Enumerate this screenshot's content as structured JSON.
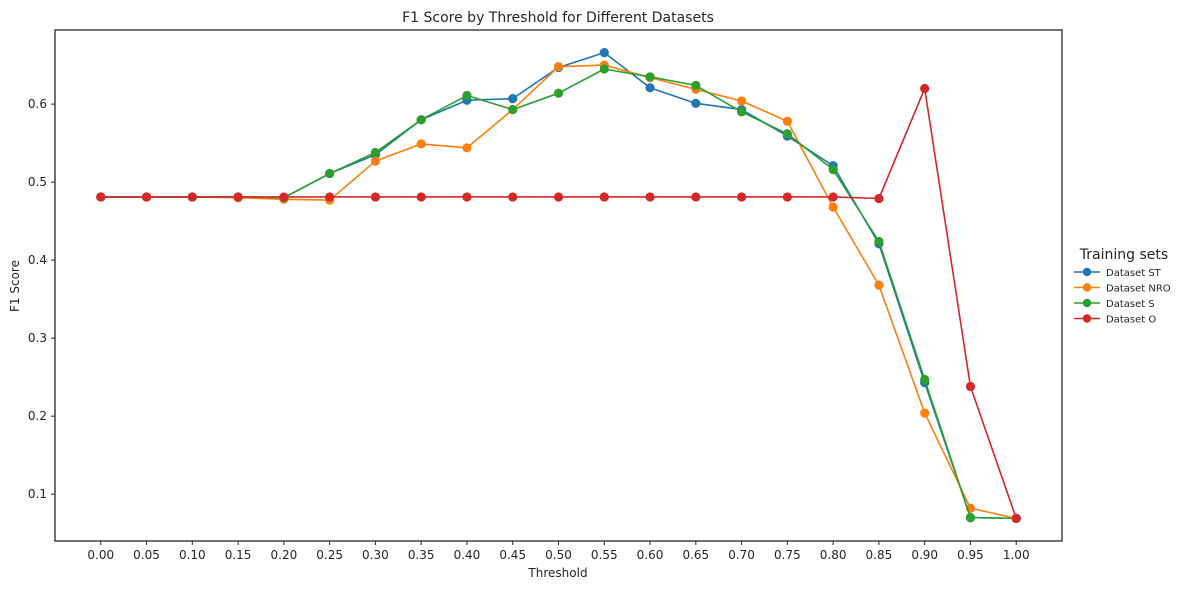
{
  "chart_data": {
    "type": "line",
    "title": "F1 Score by Threshold for Different Datasets",
    "xlabel": "Threshold",
    "ylabel": "F1 Score",
    "x": [
      "0.00",
      "0.05",
      "0.10",
      "0.15",
      "0.20",
      "0.25",
      "0.30",
      "0.35",
      "0.40",
      "0.45",
      "0.50",
      "0.55",
      "0.60",
      "0.65",
      "0.70",
      "0.75",
      "0.80",
      "0.85",
      "0.90",
      "0.95",
      "1.00"
    ],
    "xlim": [
      -0.05,
      1.05
    ],
    "ylim": [
      0.04,
      0.695
    ],
    "yticks": [
      "0.1",
      "0.2",
      "0.3",
      "0.4",
      "0.5",
      "0.6"
    ],
    "grid": false,
    "legend": {
      "title": "Training sets",
      "placement": "right, outside"
    },
    "series": [
      {
        "name": "Dataset ST",
        "color": "#1f77b4",
        "values": [
          0.481,
          0.481,
          0.481,
          0.481,
          0.48,
          0.511,
          0.535,
          0.58,
          0.605,
          0.607,
          0.647,
          0.666,
          0.621,
          0.601,
          0.593,
          0.559,
          0.521,
          0.421,
          0.243,
          0.07,
          0.069
        ]
      },
      {
        "name": "Dataset NRO",
        "color": "#ff7f0e",
        "values": [
          0.481,
          0.481,
          0.481,
          0.48,
          0.478,
          0.477,
          0.527,
          0.549,
          0.544,
          0.593,
          0.648,
          0.65,
          0.634,
          0.619,
          0.604,
          0.578,
          0.468,
          0.368,
          0.204,
          0.082,
          0.069
        ]
      },
      {
        "name": "Dataset S",
        "color": "#2ca02c",
        "values": [
          0.481,
          0.481,
          0.481,
          0.481,
          0.48,
          0.511,
          0.538,
          0.58,
          0.611,
          0.593,
          0.614,
          0.645,
          0.635,
          0.624,
          0.59,
          0.562,
          0.516,
          0.424,
          0.247,
          0.07,
          0.069
        ]
      },
      {
        "name": "Dataset O",
        "color": "#d62728",
        "values": [
          0.481,
          0.481,
          0.481,
          0.481,
          0.481,
          0.481,
          0.481,
          0.481,
          0.481,
          0.481,
          0.481,
          0.481,
          0.481,
          0.481,
          0.481,
          0.481,
          0.481,
          0.479,
          0.62,
          0.238,
          0.069
        ]
      }
    ]
  }
}
